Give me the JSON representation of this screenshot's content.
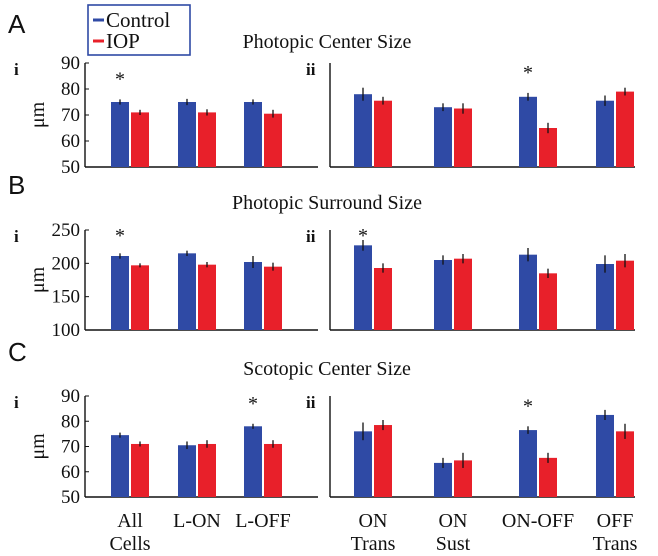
{
  "legend": [
    {
      "label": "Control",
      "color": "#2f4aa5"
    },
    {
      "label": "IOP",
      "color": "#e8202a"
    }
  ],
  "colors": {
    "control": "#2f4aa5",
    "iop": "#e8202a",
    "error_bar": "#111111"
  },
  "y_unit_label": "μm",
  "x_category_labels": {
    "left": [
      [
        "All",
        "Cells"
      ],
      [
        "L-ON",
        ""
      ],
      [
        "L-OFF",
        ""
      ]
    ],
    "right": [
      [
        "ON",
        "Trans"
      ],
      [
        "ON",
        "Sust"
      ],
      [
        "ON-OFF",
        ""
      ],
      [
        "OFF",
        "Trans"
      ]
    ]
  },
  "chart_data": [
    {
      "type": "bar",
      "panel_letter": "A",
      "subpanel": "i",
      "title": "Photopic Center Size",
      "ylabel": "μm",
      "ylim": [
        50,
        90
      ],
      "yticks": [
        50,
        60,
        70,
        80,
        90
      ],
      "categories": [
        "All Cells",
        "L-ON",
        "L-OFF"
      ],
      "series": [
        {
          "name": "Control",
          "values": [
            75,
            75,
            75
          ],
          "errors": [
            1,
            1.2,
            1
          ]
        },
        {
          "name": "IOP",
          "values": [
            71,
            71,
            70.5
          ],
          "errors": [
            1,
            1.2,
            1.5
          ]
        }
      ],
      "significance": [
        "*",
        "",
        ""
      ]
    },
    {
      "type": "bar",
      "panel_letter": "",
      "subpanel": "ii",
      "title": "",
      "ylim": [
        50,
        90
      ],
      "categories": [
        "ON Trans",
        "ON Sust",
        "ON-OFF",
        "OFF Trans"
      ],
      "series": [
        {
          "name": "Control",
          "values": [
            78,
            73,
            77,
            75.5
          ],
          "errors": [
            2.5,
            1.5,
            1.5,
            2
          ]
        },
        {
          "name": "IOP",
          "values": [
            75.5,
            72.5,
            65,
            79
          ],
          "errors": [
            1.5,
            2,
            2,
            1.5
          ]
        }
      ],
      "significance": [
        "",
        "",
        "*",
        ""
      ]
    },
    {
      "type": "bar",
      "panel_letter": "B",
      "subpanel": "i",
      "title": "Photopic Surround Size",
      "ylabel": "μm",
      "ylim": [
        100,
        250
      ],
      "yticks": [
        100,
        150,
        200,
        250
      ],
      "categories": [
        "All Cells",
        "L-ON",
        "L-OFF"
      ],
      "series": [
        {
          "name": "Control",
          "values": [
            211,
            215,
            202
          ],
          "errors": [
            4,
            4,
            9
          ]
        },
        {
          "name": "IOP",
          "values": [
            197,
            198,
            195
          ],
          "errors": [
            3,
            4,
            6
          ]
        }
      ],
      "significance": [
        "*",
        "",
        ""
      ]
    },
    {
      "type": "bar",
      "panel_letter": "",
      "subpanel": "ii",
      "title": "",
      "ylim": [
        100,
        250
      ],
      "categories": [
        "ON Trans",
        "ON Sust",
        "ON-OFF",
        "OFF Trans"
      ],
      "series": [
        {
          "name": "Control",
          "values": [
            227,
            205,
            213,
            199
          ],
          "errors": [
            8,
            7,
            10,
            13
          ]
        },
        {
          "name": "IOP",
          "values": [
            193,
            207,
            185,
            204
          ],
          "errors": [
            7,
            7,
            7,
            10
          ]
        }
      ],
      "significance": [
        "*",
        "",
        "",
        ""
      ]
    },
    {
      "type": "bar",
      "panel_letter": "C",
      "subpanel": "i",
      "title": "Scotopic Center Size",
      "ylabel": "μm",
      "ylim": [
        50,
        90
      ],
      "yticks": [
        50,
        60,
        70,
        80,
        90
      ],
      "categories": [
        "All Cells",
        "L-ON",
        "L-OFF"
      ],
      "series": [
        {
          "name": "Control",
          "values": [
            74.5,
            70.5,
            78
          ],
          "errors": [
            1,
            1.5,
            1
          ]
        },
        {
          "name": "IOP",
          "values": [
            71,
            71,
            71
          ],
          "errors": [
            1,
            1.5,
            1.5
          ]
        }
      ],
      "significance": [
        "",
        "",
        "*"
      ]
    },
    {
      "type": "bar",
      "panel_letter": "",
      "subpanel": "ii",
      "title": "",
      "ylim": [
        50,
        90
      ],
      "categories": [
        "ON Trans",
        "ON Sust",
        "ON-OFF",
        "OFF Trans"
      ],
      "series": [
        {
          "name": "Control",
          "values": [
            76,
            63.5,
            76.5,
            82.5
          ],
          "errors": [
            3.5,
            2,
            1.5,
            2
          ]
        },
        {
          "name": "IOP",
          "values": [
            78.5,
            64.5,
            65.5,
            76
          ],
          "errors": [
            2,
            3,
            2,
            3
          ]
        }
      ],
      "significance": [
        "",
        "",
        "*",
        ""
      ]
    }
  ]
}
